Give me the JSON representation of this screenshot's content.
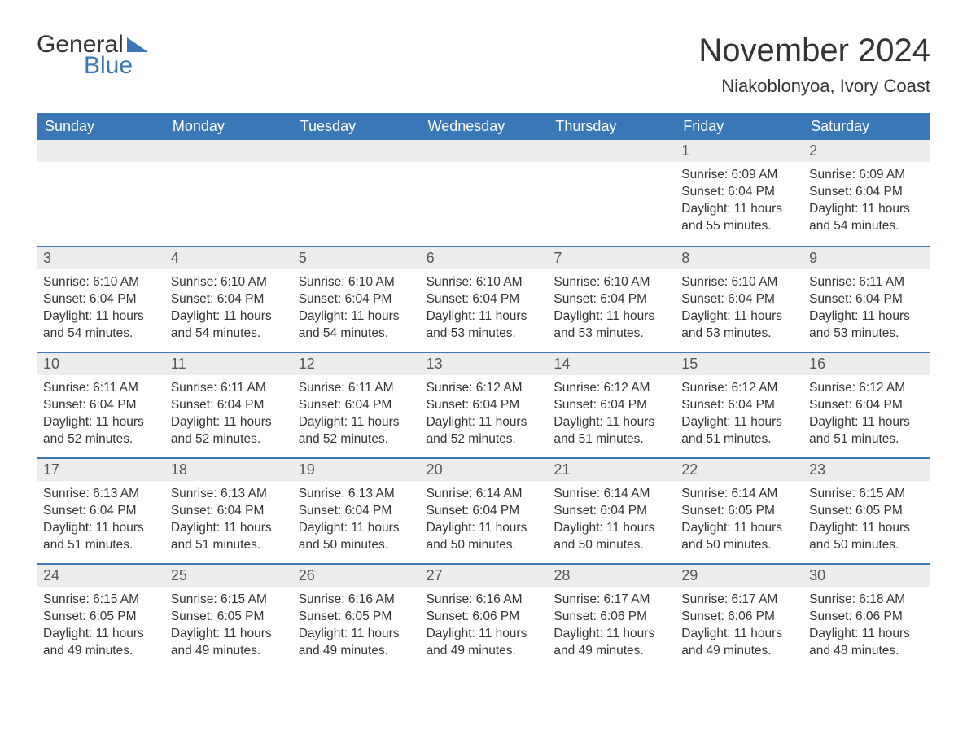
{
  "logo": {
    "word1": "General",
    "word2": "Blue"
  },
  "title": {
    "month": "November 2024",
    "location": "Niakoblonyoa, Ivory Coast"
  },
  "colors": {
    "brand_blue": "#3a77b6",
    "header_text": "#ffffff",
    "bg": "#ffffff",
    "cell_band": "#ececec",
    "text": "#333333"
  },
  "day_headers": [
    "Sunday",
    "Monday",
    "Tuesday",
    "Wednesday",
    "Thursday",
    "Friday",
    "Saturday"
  ],
  "leading_blanks": 5,
  "days": [
    {
      "n": 1,
      "sunrise": "6:09 AM",
      "sunset": "6:04 PM",
      "daylight": "11 hours and 55 minutes."
    },
    {
      "n": 2,
      "sunrise": "6:09 AM",
      "sunset": "6:04 PM",
      "daylight": "11 hours and 54 minutes."
    },
    {
      "n": 3,
      "sunrise": "6:10 AM",
      "sunset": "6:04 PM",
      "daylight": "11 hours and 54 minutes."
    },
    {
      "n": 4,
      "sunrise": "6:10 AM",
      "sunset": "6:04 PM",
      "daylight": "11 hours and 54 minutes."
    },
    {
      "n": 5,
      "sunrise": "6:10 AM",
      "sunset": "6:04 PM",
      "daylight": "11 hours and 54 minutes."
    },
    {
      "n": 6,
      "sunrise": "6:10 AM",
      "sunset": "6:04 PM",
      "daylight": "11 hours and 53 minutes."
    },
    {
      "n": 7,
      "sunrise": "6:10 AM",
      "sunset": "6:04 PM",
      "daylight": "11 hours and 53 minutes."
    },
    {
      "n": 8,
      "sunrise": "6:10 AM",
      "sunset": "6:04 PM",
      "daylight": "11 hours and 53 minutes."
    },
    {
      "n": 9,
      "sunrise": "6:11 AM",
      "sunset": "6:04 PM",
      "daylight": "11 hours and 53 minutes."
    },
    {
      "n": 10,
      "sunrise": "6:11 AM",
      "sunset": "6:04 PM",
      "daylight": "11 hours and 52 minutes."
    },
    {
      "n": 11,
      "sunrise": "6:11 AM",
      "sunset": "6:04 PM",
      "daylight": "11 hours and 52 minutes."
    },
    {
      "n": 12,
      "sunrise": "6:11 AM",
      "sunset": "6:04 PM",
      "daylight": "11 hours and 52 minutes."
    },
    {
      "n": 13,
      "sunrise": "6:12 AM",
      "sunset": "6:04 PM",
      "daylight": "11 hours and 52 minutes."
    },
    {
      "n": 14,
      "sunrise": "6:12 AM",
      "sunset": "6:04 PM",
      "daylight": "11 hours and 51 minutes."
    },
    {
      "n": 15,
      "sunrise": "6:12 AM",
      "sunset": "6:04 PM",
      "daylight": "11 hours and 51 minutes."
    },
    {
      "n": 16,
      "sunrise": "6:12 AM",
      "sunset": "6:04 PM",
      "daylight": "11 hours and 51 minutes."
    },
    {
      "n": 17,
      "sunrise": "6:13 AM",
      "sunset": "6:04 PM",
      "daylight": "11 hours and 51 minutes."
    },
    {
      "n": 18,
      "sunrise": "6:13 AM",
      "sunset": "6:04 PM",
      "daylight": "11 hours and 51 minutes."
    },
    {
      "n": 19,
      "sunrise": "6:13 AM",
      "sunset": "6:04 PM",
      "daylight": "11 hours and 50 minutes."
    },
    {
      "n": 20,
      "sunrise": "6:14 AM",
      "sunset": "6:04 PM",
      "daylight": "11 hours and 50 minutes."
    },
    {
      "n": 21,
      "sunrise": "6:14 AM",
      "sunset": "6:04 PM",
      "daylight": "11 hours and 50 minutes."
    },
    {
      "n": 22,
      "sunrise": "6:14 AM",
      "sunset": "6:05 PM",
      "daylight": "11 hours and 50 minutes."
    },
    {
      "n": 23,
      "sunrise": "6:15 AM",
      "sunset": "6:05 PM",
      "daylight": "11 hours and 50 minutes."
    },
    {
      "n": 24,
      "sunrise": "6:15 AM",
      "sunset": "6:05 PM",
      "daylight": "11 hours and 49 minutes."
    },
    {
      "n": 25,
      "sunrise": "6:15 AM",
      "sunset": "6:05 PM",
      "daylight": "11 hours and 49 minutes."
    },
    {
      "n": 26,
      "sunrise": "6:16 AM",
      "sunset": "6:05 PM",
      "daylight": "11 hours and 49 minutes."
    },
    {
      "n": 27,
      "sunrise": "6:16 AM",
      "sunset": "6:06 PM",
      "daylight": "11 hours and 49 minutes."
    },
    {
      "n": 28,
      "sunrise": "6:17 AM",
      "sunset": "6:06 PM",
      "daylight": "11 hours and 49 minutes."
    },
    {
      "n": 29,
      "sunrise": "6:17 AM",
      "sunset": "6:06 PM",
      "daylight": "11 hours and 49 minutes."
    },
    {
      "n": 30,
      "sunrise": "6:18 AM",
      "sunset": "6:06 PM",
      "daylight": "11 hours and 48 minutes."
    }
  ],
  "labels": {
    "sunrise": "Sunrise:",
    "sunset": "Sunset:",
    "daylight": "Daylight:"
  }
}
